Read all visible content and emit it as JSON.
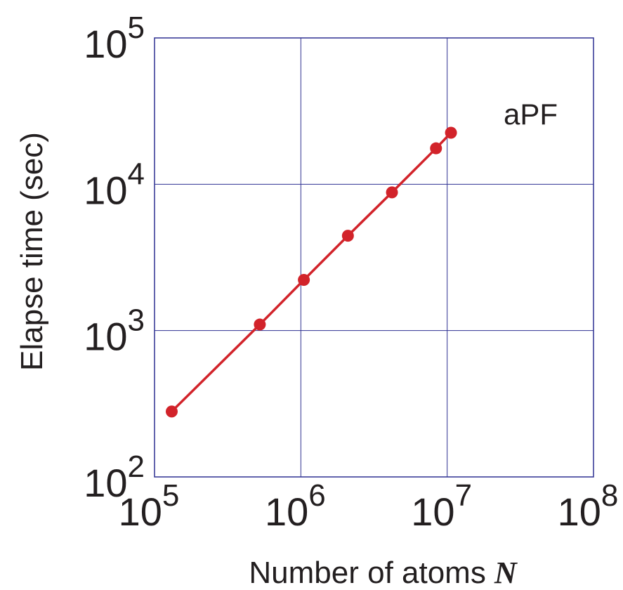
{
  "chart_data": {
    "type": "line",
    "title": "",
    "xlabel": "Number of atoms",
    "xlabel_variable": "N",
    "ylabel": "Elapse time (sec)",
    "x_scale": "log",
    "y_scale": "log",
    "xlim": [
      100000,
      100000000
    ],
    "ylim": [
      100,
      100000
    ],
    "x_ticks": [
      {
        "value": 100000,
        "base": "10",
        "exp": "5"
      },
      {
        "value": 1000000,
        "base": "10",
        "exp": "6"
      },
      {
        "value": 10000000,
        "base": "10",
        "exp": "7"
      },
      {
        "value": 100000000,
        "base": "10",
        "exp": "8"
      }
    ],
    "y_ticks": [
      {
        "value": 100,
        "base": "10",
        "exp": "2"
      },
      {
        "value": 1000,
        "base": "10",
        "exp": "3"
      },
      {
        "value": 10000,
        "base": "10",
        "exp": "4"
      },
      {
        "value": 100000,
        "base": "10",
        "exp": "5"
      }
    ],
    "grid": true,
    "series": [
      {
        "name": "aPF",
        "color": "#d2232a",
        "marker": "circle",
        "x": [
          131072,
          524288,
          1048576,
          2097152,
          4194304,
          8388608,
          10616832
        ],
        "y": [
          280,
          1100,
          2220,
          4450,
          8800,
          17600,
          22500
        ]
      }
    ],
    "colors": {
      "frame": "#2e3192",
      "grid": "#2e3192",
      "text": "#231f20"
    }
  }
}
